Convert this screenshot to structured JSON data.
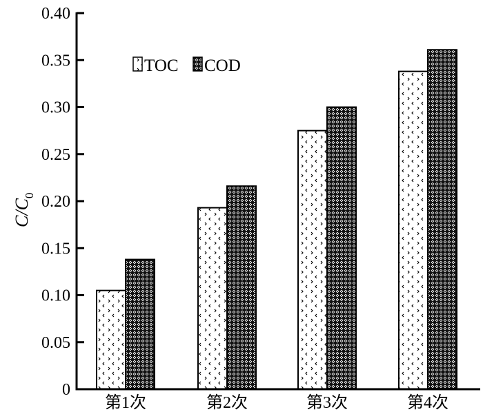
{
  "chart_data": {
    "type": "bar",
    "title": "",
    "xlabel": "",
    "ylabel": "C/C",
    "ylabel_sub": "0",
    "ylim": [
      0,
      0.4
    ],
    "yticks": [
      "0",
      "0.05",
      "0.10",
      "0.15",
      "0.20",
      "0.25",
      "0.30",
      "0.35",
      "0.40"
    ],
    "ytick_values": [
      0,
      0.05,
      0.1,
      0.15,
      0.2,
      0.25,
      0.3,
      0.35,
      0.4
    ],
    "categories": [
      "第1次",
      "第2次",
      "第3次",
      "第4次"
    ],
    "series": [
      {
        "name": "TOC",
        "values": [
          0.105,
          0.193,
          0.275,
          0.338
        ],
        "pattern": "chevron-dots",
        "color": "#ffffff"
      },
      {
        "name": "COD",
        "values": [
          0.138,
          0.216,
          0.3,
          0.361
        ],
        "pattern": "crosshatch-dark",
        "color": "#222222"
      }
    ],
    "legend_position": "top-left",
    "grid": false
  }
}
